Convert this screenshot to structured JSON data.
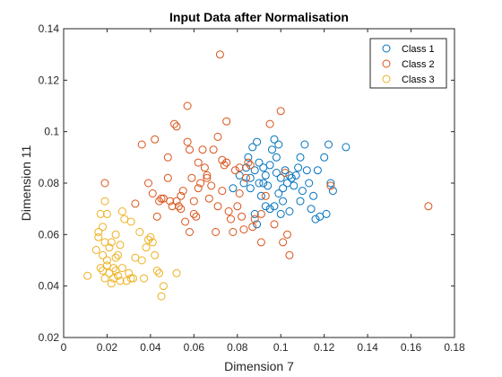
{
  "chart_data": {
    "type": "scatter",
    "title": "Input Data after Normalisation",
    "xlabel": "Dimension 7",
    "ylabel": "Dimension 11",
    "xlim": [
      0,
      0.18
    ],
    "ylim": [
      0.02,
      0.14
    ],
    "xticks": [
      "0",
      "0.02",
      "0.04",
      "0.06",
      "0.08",
      "0.1",
      "0.12",
      "0.14",
      "0.16",
      "0.18"
    ],
    "yticks": [
      "0.02",
      "0.04",
      "0.06",
      "0.08",
      "0.1",
      "0.12",
      "0.14"
    ],
    "grid": false,
    "legend_position": "top-right",
    "marker": "open-circle",
    "series": [
      {
        "name": "Class 1",
        "color": "#0072BD",
        "points": [
          [
            0.078,
            0.078
          ],
          [
            0.081,
            0.083
          ],
          [
            0.083,
            0.08
          ],
          [
            0.084,
            0.086
          ],
          [
            0.085,
            0.09
          ],
          [
            0.086,
            0.082
          ],
          [
            0.087,
            0.094
          ],
          [
            0.088,
            0.085
          ],
          [
            0.089,
            0.096
          ],
          [
            0.09,
            0.088
          ],
          [
            0.09,
            0.08
          ],
          [
            0.091,
            0.075
          ],
          [
            0.092,
            0.086
          ],
          [
            0.093,
            0.083
          ],
          [
            0.094,
            0.079
          ],
          [
            0.095,
            0.087
          ],
          [
            0.096,
            0.093
          ],
          [
            0.097,
            0.097
          ],
          [
            0.098,
            0.09
          ],
          [
            0.099,
            0.095
          ],
          [
            0.1,
            0.082
          ],
          [
            0.101,
            0.078
          ],
          [
            0.102,
            0.085
          ],
          [
            0.103,
            0.08
          ],
          [
            0.104,
            0.083
          ],
          [
            0.105,
            0.082
          ],
          [
            0.106,
            0.079
          ],
          [
            0.107,
            0.083
          ],
          [
            0.108,
            0.086
          ],
          [
            0.109,
            0.09
          ],
          [
            0.11,
            0.077
          ],
          [
            0.111,
            0.095
          ],
          [
            0.112,
            0.085
          ],
          [
            0.113,
            0.08
          ],
          [
            0.114,
            0.07
          ],
          [
            0.115,
            0.075
          ],
          [
            0.116,
            0.066
          ],
          [
            0.117,
            0.085
          ],
          [
            0.118,
            0.067
          ],
          [
            0.12,
            0.09
          ],
          [
            0.121,
            0.068
          ],
          [
            0.122,
            0.095
          ],
          [
            0.123,
            0.08
          ],
          [
            0.124,
            0.077
          ],
          [
            0.13,
            0.094
          ],
          [
            0.088,
            0.068
          ],
          [
            0.089,
            0.064
          ],
          [
            0.092,
            0.08
          ],
          [
            0.095,
            0.07
          ],
          [
            0.097,
            0.071
          ],
          [
            0.1,
            0.068
          ],
          [
            0.101,
            0.073
          ],
          [
            0.099,
            0.076
          ],
          [
            0.104,
            0.069
          ],
          [
            0.086,
            0.078
          ],
          [
            0.093,
            0.071
          ],
          [
            0.098,
            0.084
          ],
          [
            0.109,
            0.073
          ]
        ]
      },
      {
        "name": "Class 2",
        "color": "#D95319",
        "points": [
          [
            0.019,
            0.08
          ],
          [
            0.033,
            0.072
          ],
          [
            0.036,
            0.095
          ],
          [
            0.039,
            0.08
          ],
          [
            0.041,
            0.076
          ],
          [
            0.042,
            0.097
          ],
          [
            0.043,
            0.067
          ],
          [
            0.044,
            0.073
          ],
          [
            0.045,
            0.074
          ],
          [
            0.046,
            0.074
          ],
          [
            0.048,
            0.082
          ],
          [
            0.048,
            0.09
          ],
          [
            0.049,
            0.073
          ],
          [
            0.05,
            0.071
          ],
          [
            0.051,
            0.103
          ],
          [
            0.052,
            0.073
          ],
          [
            0.053,
            0.071
          ],
          [
            0.054,
            0.07
          ],
          [
            0.055,
            0.077
          ],
          [
            0.056,
            0.065
          ],
          [
            0.057,
            0.11
          ],
          [
            0.058,
            0.093
          ],
          [
            0.058,
            0.061
          ],
          [
            0.059,
            0.082
          ],
          [
            0.06,
            0.073
          ],
          [
            0.061,
            0.067
          ],
          [
            0.062,
            0.078
          ],
          [
            0.063,
            0.08
          ],
          [
            0.064,
            0.093
          ],
          [
            0.065,
            0.086
          ],
          [
            0.066,
            0.083
          ],
          [
            0.067,
            0.074
          ],
          [
            0.068,
            0.079
          ],
          [
            0.069,
            0.093
          ],
          [
            0.07,
            0.061
          ],
          [
            0.071,
            0.071
          ],
          [
            0.072,
            0.13
          ],
          [
            0.073,
            0.077
          ],
          [
            0.074,
            0.087
          ],
          [
            0.075,
            0.088
          ],
          [
            0.076,
            0.069
          ],
          [
            0.077,
            0.066
          ],
          [
            0.078,
            0.061
          ],
          [
            0.079,
            0.085
          ],
          [
            0.08,
            0.071
          ],
          [
            0.081,
            0.076
          ],
          [
            0.082,
            0.067
          ],
          [
            0.083,
            0.062
          ],
          [
            0.084,
            0.082
          ],
          [
            0.085,
            0.088
          ],
          [
            0.086,
            0.087
          ],
          [
            0.088,
            0.066
          ],
          [
            0.091,
            0.068
          ],
          [
            0.093,
            0.075
          ],
          [
            0.095,
            0.103
          ],
          [
            0.097,
            0.064
          ],
          [
            0.1,
            0.108
          ],
          [
            0.101,
            0.057
          ],
          [
            0.102,
            0.084
          ],
          [
            0.103,
            0.06
          ],
          [
            0.104,
            0.052
          ],
          [
            0.123,
            0.079
          ],
          [
            0.168,
            0.071
          ],
          [
            0.052,
            0.102
          ],
          [
            0.057,
            0.096
          ],
          [
            0.066,
            0.082
          ],
          [
            0.071,
            0.098
          ],
          [
            0.075,
            0.104
          ],
          [
            0.062,
            0.088
          ],
          [
            0.054,
            0.075
          ],
          [
            0.06,
            0.068
          ],
          [
            0.087,
            0.063
          ],
          [
            0.073,
            0.089
          ],
          [
            0.091,
            0.057
          ],
          [
            0.081,
            0.086
          ]
        ]
      },
      {
        "name": "Class 3",
        "color": "#EDB120",
        "points": [
          [
            0.011,
            0.044
          ],
          [
            0.015,
            0.054
          ],
          [
            0.016,
            0.059
          ],
          [
            0.016,
            0.061
          ],
          [
            0.017,
            0.047
          ],
          [
            0.017,
            0.068
          ],
          [
            0.018,
            0.052
          ],
          [
            0.018,
            0.046
          ],
          [
            0.019,
            0.073
          ],
          [
            0.019,
            0.043
          ],
          [
            0.02,
            0.05
          ],
          [
            0.02,
            0.068
          ],
          [
            0.021,
            0.055
          ],
          [
            0.021,
            0.045
          ],
          [
            0.022,
            0.041
          ],
          [
            0.022,
            0.057
          ],
          [
            0.023,
            0.047
          ],
          [
            0.024,
            0.046
          ],
          [
            0.024,
            0.06
          ],
          [
            0.025,
            0.044
          ],
          [
            0.025,
            0.052
          ],
          [
            0.026,
            0.042
          ],
          [
            0.026,
            0.056
          ],
          [
            0.027,
            0.069
          ],
          [
            0.028,
            0.066
          ],
          [
            0.029,
            0.042
          ],
          [
            0.03,
            0.045
          ],
          [
            0.031,
            0.065
          ],
          [
            0.032,
            0.043
          ],
          [
            0.033,
            0.051
          ],
          [
            0.035,
            0.061
          ],
          [
            0.036,
            0.05
          ],
          [
            0.037,
            0.043
          ],
          [
            0.039,
            0.058
          ],
          [
            0.04,
            0.059
          ],
          [
            0.041,
            0.057
          ],
          [
            0.042,
            0.052
          ],
          [
            0.043,
            0.046
          ],
          [
            0.044,
            0.045
          ],
          [
            0.045,
            0.036
          ],
          [
            0.046,
            0.04
          ],
          [
            0.052,
            0.045
          ],
          [
            0.018,
            0.063
          ],
          [
            0.02,
            0.048
          ],
          [
            0.023,
            0.043
          ],
          [
            0.027,
            0.047
          ],
          [
            0.031,
            0.043
          ],
          [
            0.038,
            0.055
          ],
          [
            0.024,
            0.051
          ],
          [
            0.019,
            0.057
          ]
        ]
      }
    ]
  }
}
